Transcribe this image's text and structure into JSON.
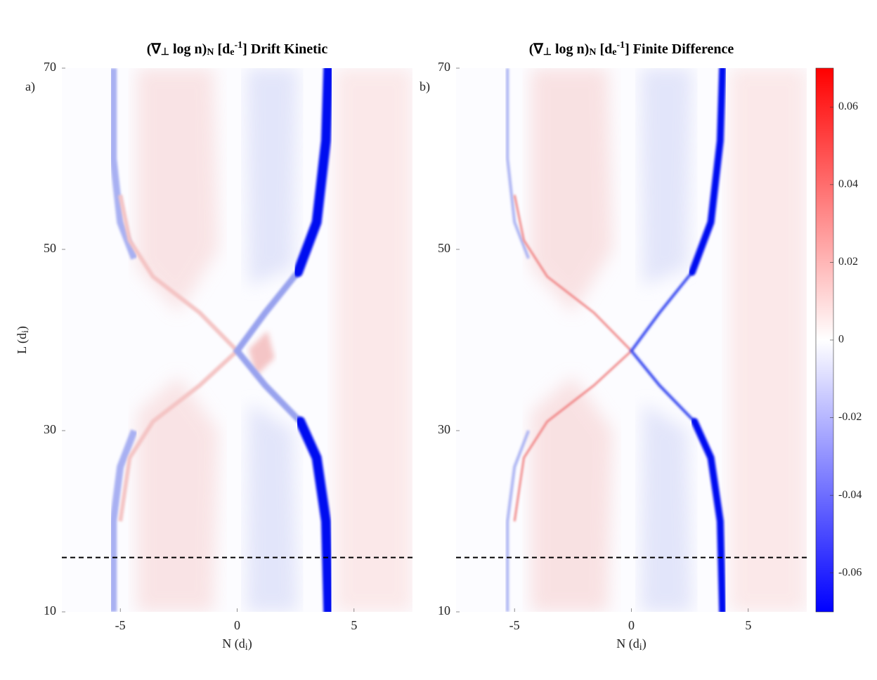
{
  "chart_data": [
    {
      "type": "heatmap",
      "title": [
        "(∇",
        "⊥",
        " log n)",
        "N",
        " [d",
        "e",
        "-1",
        "] Drift Kinetic"
      ],
      "panel_label": "a)",
      "xlabel": [
        "N (d",
        "i",
        ")"
      ],
      "ylabel": [
        "L (d",
        "i",
        ")"
      ],
      "xlim": [
        -7.5,
        7.5
      ],
      "xticks": [
        -5,
        0,
        5
      ],
      "ylim": [
        10,
        70
      ],
      "yticks": [
        10,
        30,
        50,
        70
      ],
      "hline": 16
    },
    {
      "type": "heatmap",
      "title": [
        "(∇",
        "⊥",
        " log n)",
        "N",
        " [d",
        "e",
        "-1",
        "] Finite Difference"
      ],
      "panel_label": "b)",
      "xlabel": [
        "N (d",
        "i",
        ")"
      ],
      "xlim": [
        -7.5,
        7.5
      ],
      "xticks": [
        -5,
        0,
        5
      ],
      "ylim": [
        10,
        70
      ],
      "yticks": [
        10,
        30,
        50,
        70
      ],
      "hline": 16,
      "colorbar": {
        "clim": [
          -0.07,
          0.07
        ],
        "ticks": [
          -0.06,
          -0.04,
          -0.02,
          0,
          0.02,
          0.04,
          0.06
        ],
        "colors": [
          "#0000ff",
          "#ffffff",
          "#ff0000"
        ]
      }
    }
  ]
}
